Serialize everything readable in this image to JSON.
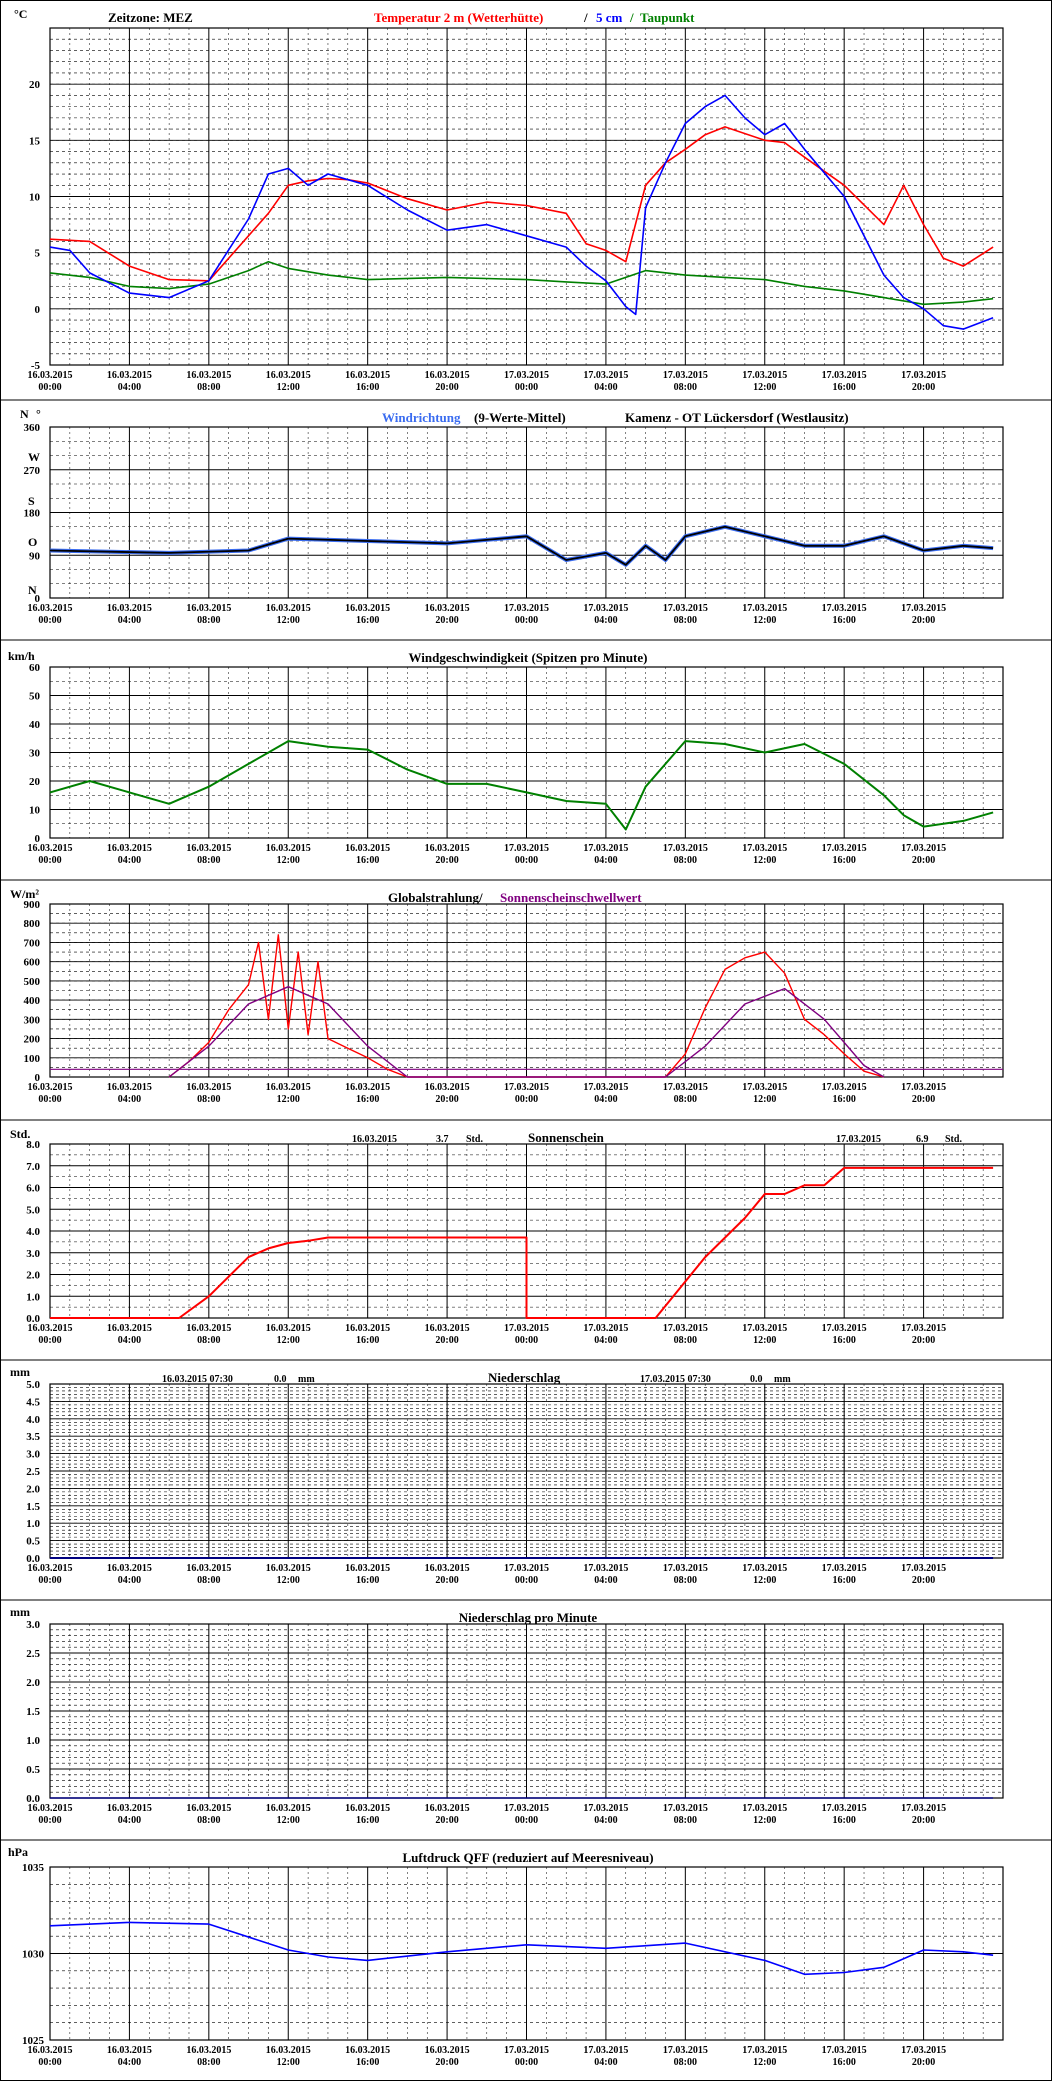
{
  "x_ticks": [
    {
      "date": "16.03.2015",
      "time": "00:00"
    },
    {
      "date": "16.03.2015",
      "time": "04:00"
    },
    {
      "date": "16.03.2015",
      "time": "08:00"
    },
    {
      "date": "16.03.2015",
      "time": "12:00"
    },
    {
      "date": "16.03.2015",
      "time": "16:00"
    },
    {
      "date": "16.03.2015",
      "time": "20:00"
    },
    {
      "date": "17.03.2015",
      "time": "00:00"
    },
    {
      "date": "17.03.2015",
      "time": "04:00"
    },
    {
      "date": "17.03.2015",
      "time": "08:00"
    },
    {
      "date": "17.03.2015",
      "time": "12:00"
    },
    {
      "date": "17.03.2015",
      "time": "16:00"
    },
    {
      "date": "17.03.2015",
      "time": "20:00"
    }
  ],
  "panels": {
    "temperature": {
      "unit": "°C",
      "timezone": "Zeitzone: MEZ",
      "title_red": "Temperatur 2 m (Wetterhütte)",
      "title_sep": "/",
      "title_blue": "5 cm",
      "title_slash2": "/",
      "title_green": "Taupunkt",
      "yticks": [
        "-5",
        "0",
        "5",
        "10",
        "15",
        "20"
      ]
    },
    "wind_direction": {
      "unit": "N",
      "deg": "°",
      "title_blue": "Windrichtung",
      "title_black": "(9-Werte-Mittel)",
      "station": "Kamenz - OT Lückersdorf (Westlausitz)",
      "yticks": [
        "0",
        "90",
        "180",
        "270",
        "360"
      ],
      "compass": [
        "N",
        "O",
        "S",
        "W"
      ]
    },
    "wind_speed": {
      "unit": "km/h",
      "title": "Windgeschwindigkeit (Spitzen pro Minute)",
      "yticks": [
        "0",
        "10",
        "20",
        "30",
        "40",
        "50",
        "60"
      ]
    },
    "radiation": {
      "unit": "W/m²",
      "title_black": "Globalstrahlung/",
      "title_purple": "Sonnenscheinschwellwert",
      "yticks": [
        "0",
        "100",
        "200",
        "300",
        "400",
        "500",
        "600",
        "700",
        "800",
        "900"
      ]
    },
    "sunshine": {
      "unit": "Std.",
      "day1_date": "16.03.2015",
      "day1_value": "3.7",
      "day1_unit": "Std.",
      "title": "Sonnenschein",
      "day2_date": "17.03.2015",
      "day2_value": "6.9",
      "day2_unit": "Std.",
      "yticks": [
        "0.0",
        "1.0",
        "2.0",
        "3.0",
        "4.0",
        "5.0",
        "6.0",
        "7.0",
        "8.0"
      ]
    },
    "precipitation": {
      "unit": "mm",
      "day1_datetime": "16.03.2015 07:30",
      "day1_value": "0.0",
      "day1_unit": "mm",
      "title": "Niederschlag",
      "day2_datetime": "17.03.2015 07:30",
      "day2_value": "0.0",
      "day2_unit": "mm",
      "yticks": [
        "0.0",
        "0.5",
        "1.0",
        "1.5",
        "2.0",
        "2.5",
        "3.0",
        "3.5",
        "4.0",
        "4.5",
        "5.0"
      ]
    },
    "precip_minute": {
      "unit": "mm",
      "title": "Niederschlag pro Minute",
      "yticks": [
        "0.0",
        "0.5",
        "1.0",
        "1.5",
        "2.0",
        "2.5",
        "3.0"
      ]
    },
    "pressure": {
      "unit": "hPa",
      "title": "Luftdruck QFF (reduziert auf Meeresniveau)",
      "yticks": [
        "1025",
        "1030",
        "1035"
      ]
    }
  },
  "colors": {
    "temp_air": "#ff0000",
    "temp_5cm": "#0000ff",
    "dewpoint": "#008000",
    "wind_dir": "#3a6cf0",
    "wind_dir_mean": "#000000",
    "wind_speed": "#008000",
    "radiation": "#ff0000",
    "threshold": "#800080",
    "sunshine": "#ff0000",
    "precip_line": "#000080",
    "pressure": "#0000ff"
  },
  "chart_data": [
    {
      "type": "line",
      "x_unit": "hours since 16.03.2015 00:00",
      "ylim": [
        -5,
        25
      ],
      "series": [
        {
          "name": "Temperatur 2 m (Wetterhütte)",
          "x": [
            0,
            2,
            4,
            6,
            8,
            10,
            11,
            12,
            13,
            14,
            15,
            16,
            18,
            20,
            22,
            24,
            26,
            27,
            28,
            29,
            30,
            31,
            32,
            33,
            34,
            36,
            37,
            38,
            40,
            42,
            43,
            44,
            45,
            46,
            47.5
          ],
          "y": [
            6.2,
            6,
            3.8,
            2.6,
            2.5,
            6.5,
            8.5,
            11,
            11.4,
            11.6,
            11.5,
            11.2,
            9.8,
            8.8,
            9.5,
            9.2,
            8.5,
            5.8,
            5.2,
            4.2,
            11,
            13,
            14.2,
            15.5,
            16.2,
            15,
            14.8,
            13.5,
            11,
            7.5,
            11,
            7.5,
            4.5,
            3.8,
            5.5
          ]
        },
        {
          "name": "5 cm",
          "x": [
            0,
            1,
            2,
            4,
            6,
            8,
            10,
            11,
            12,
            13,
            14,
            16,
            18,
            20,
            22,
            24,
            26,
            27,
            28,
            29,
            29.5,
            30,
            31,
            32,
            33,
            34,
            35,
            36,
            37,
            38,
            40,
            42,
            43,
            44,
            45,
            46,
            47.5
          ],
          "y": [
            5.5,
            5.2,
            3.2,
            1.4,
            1,
            2.5,
            8,
            12,
            12.5,
            11,
            12,
            11,
            8.8,
            7,
            7.5,
            6.5,
            5.5,
            3.8,
            2.5,
            0.2,
            -0.5,
            9,
            13,
            16.5,
            18,
            19,
            17,
            15.5,
            16.5,
            14.2,
            10,
            3,
            1,
            0,
            -1.5,
            -1.8,
            -0.8
          ]
        },
        {
          "name": "Taupunkt",
          "x": [
            0,
            2,
            4,
            6,
            8,
            10,
            11,
            12,
            14,
            16,
            20,
            24,
            26,
            28,
            30,
            32,
            34,
            36,
            38,
            40,
            42,
            44,
            46,
            47.5
          ],
          "y": [
            3.2,
            2.8,
            2,
            1.8,
            2.2,
            3.4,
            4.2,
            3.6,
            3,
            2.6,
            2.8,
            2.6,
            2.4,
            2.2,
            3.4,
            3,
            2.8,
            2.6,
            2,
            1.6,
            1,
            0.4,
            0.6,
            0.9
          ]
        }
      ]
    },
    {
      "type": "line",
      "ylim": [
        0,
        360
      ],
      "series": [
        {
          "name": "Windrichtung",
          "x": [
            0,
            6,
            10,
            12,
            16,
            20,
            24,
            26,
            28,
            29,
            30,
            31,
            32,
            34,
            36,
            38,
            40,
            42,
            44,
            46,
            47.5
          ],
          "y": [
            100,
            95,
            100,
            125,
            120,
            115,
            130,
            80,
            95,
            70,
            110,
            80,
            130,
            150,
            130,
            110,
            110,
            130,
            100,
            110,
            105
          ]
        }
      ]
    },
    {
      "type": "line",
      "ylim": [
        0,
        60
      ],
      "series": [
        {
          "name": "Windgeschwindigkeit",
          "x": [
            0,
            2,
            4,
            6,
            8,
            10,
            12,
            14,
            16,
            18,
            20,
            22,
            24,
            26,
            28,
            29,
            30,
            32,
            34,
            36,
            38,
            40,
            42,
            43,
            44,
            46,
            47.5
          ],
          "y": [
            16,
            20,
            16,
            12,
            18,
            26,
            34,
            32,
            31,
            24,
            19,
            19,
            16,
            13,
            12,
            3,
            18,
            34,
            33,
            30,
            33,
            26,
            15,
            8,
            4,
            6,
            9
          ]
        }
      ]
    },
    {
      "type": "line",
      "ylim": [
        0,
        900
      ],
      "series": [
        {
          "name": "Globalstrahlung",
          "x": [
            6,
            7,
            8,
            9,
            10,
            10.5,
            11,
            11.5,
            12,
            12.5,
            13,
            13.5,
            14,
            15,
            16,
            17,
            18,
            31,
            32,
            33,
            34,
            35,
            36,
            37,
            38,
            39,
            40,
            41,
            42
          ],
          "y": [
            0,
            80,
            180,
            350,
            480,
            700,
            300,
            740,
            250,
            650,
            220,
            600,
            200,
            150,
            100,
            40,
            0,
            0,
            120,
            360,
            560,
            620,
            650,
            540,
            300,
            220,
            120,
            30,
            0
          ]
        },
        {
          "name": "Sonnenscheinschwellwert",
          "x": [
            6,
            8,
            10,
            12,
            14,
            16,
            18,
            31,
            33,
            35,
            37,
            39,
            41,
            42
          ],
          "y": [
            0,
            160,
            380,
            470,
            380,
            160,
            0,
            0,
            160,
            380,
            460,
            300,
            60,
            0
          ]
        }
      ]
    },
    {
      "type": "line",
      "ylim": [
        0,
        8
      ],
      "series": [
        {
          "name": "Sonnenschein",
          "x": [
            0,
            6.5,
            8,
            10,
            11,
            12,
            13,
            14,
            24,
            24,
            30.5,
            33,
            35,
            36,
            37,
            38,
            39,
            40,
            41,
            47.5
          ],
          "y": [
            0,
            0,
            1,
            2.8,
            3.2,
            3.45,
            3.55,
            3.7,
            3.7,
            0,
            0,
            2.8,
            4.6,
            5.7,
            5.7,
            6.1,
            6.1,
            6.9,
            6.9,
            6.9
          ]
        }
      ]
    },
    {
      "type": "line",
      "ylim": [
        0,
        5
      ],
      "series": [
        {
          "name": "Niederschlag",
          "x": [
            0,
            47.5
          ],
          "y": [
            0,
            0
          ]
        }
      ]
    },
    {
      "type": "line",
      "ylim": [
        0,
        3
      ],
      "series": [
        {
          "name": "Niederschlag pro Minute",
          "x": [
            0,
            47.5
          ],
          "y": [
            0,
            0
          ]
        }
      ]
    },
    {
      "type": "line",
      "ylim": [
        1025,
        1035
      ],
      "series": [
        {
          "name": "Luftdruck QFF",
          "x": [
            0,
            4,
            8,
            12,
            14,
            16,
            20,
            24,
            28,
            32,
            36,
            38,
            40,
            42,
            44,
            46,
            47.5
          ],
          "y": [
            1031.6,
            1031.8,
            1031.7,
            1030.2,
            1029.8,
            1029.6,
            1030.1,
            1030.5,
            1030.3,
            1030.6,
            1029.6,
            1028.8,
            1028.9,
            1029.2,
            1030.2,
            1030.1,
            1029.9
          ]
        }
      ]
    }
  ]
}
